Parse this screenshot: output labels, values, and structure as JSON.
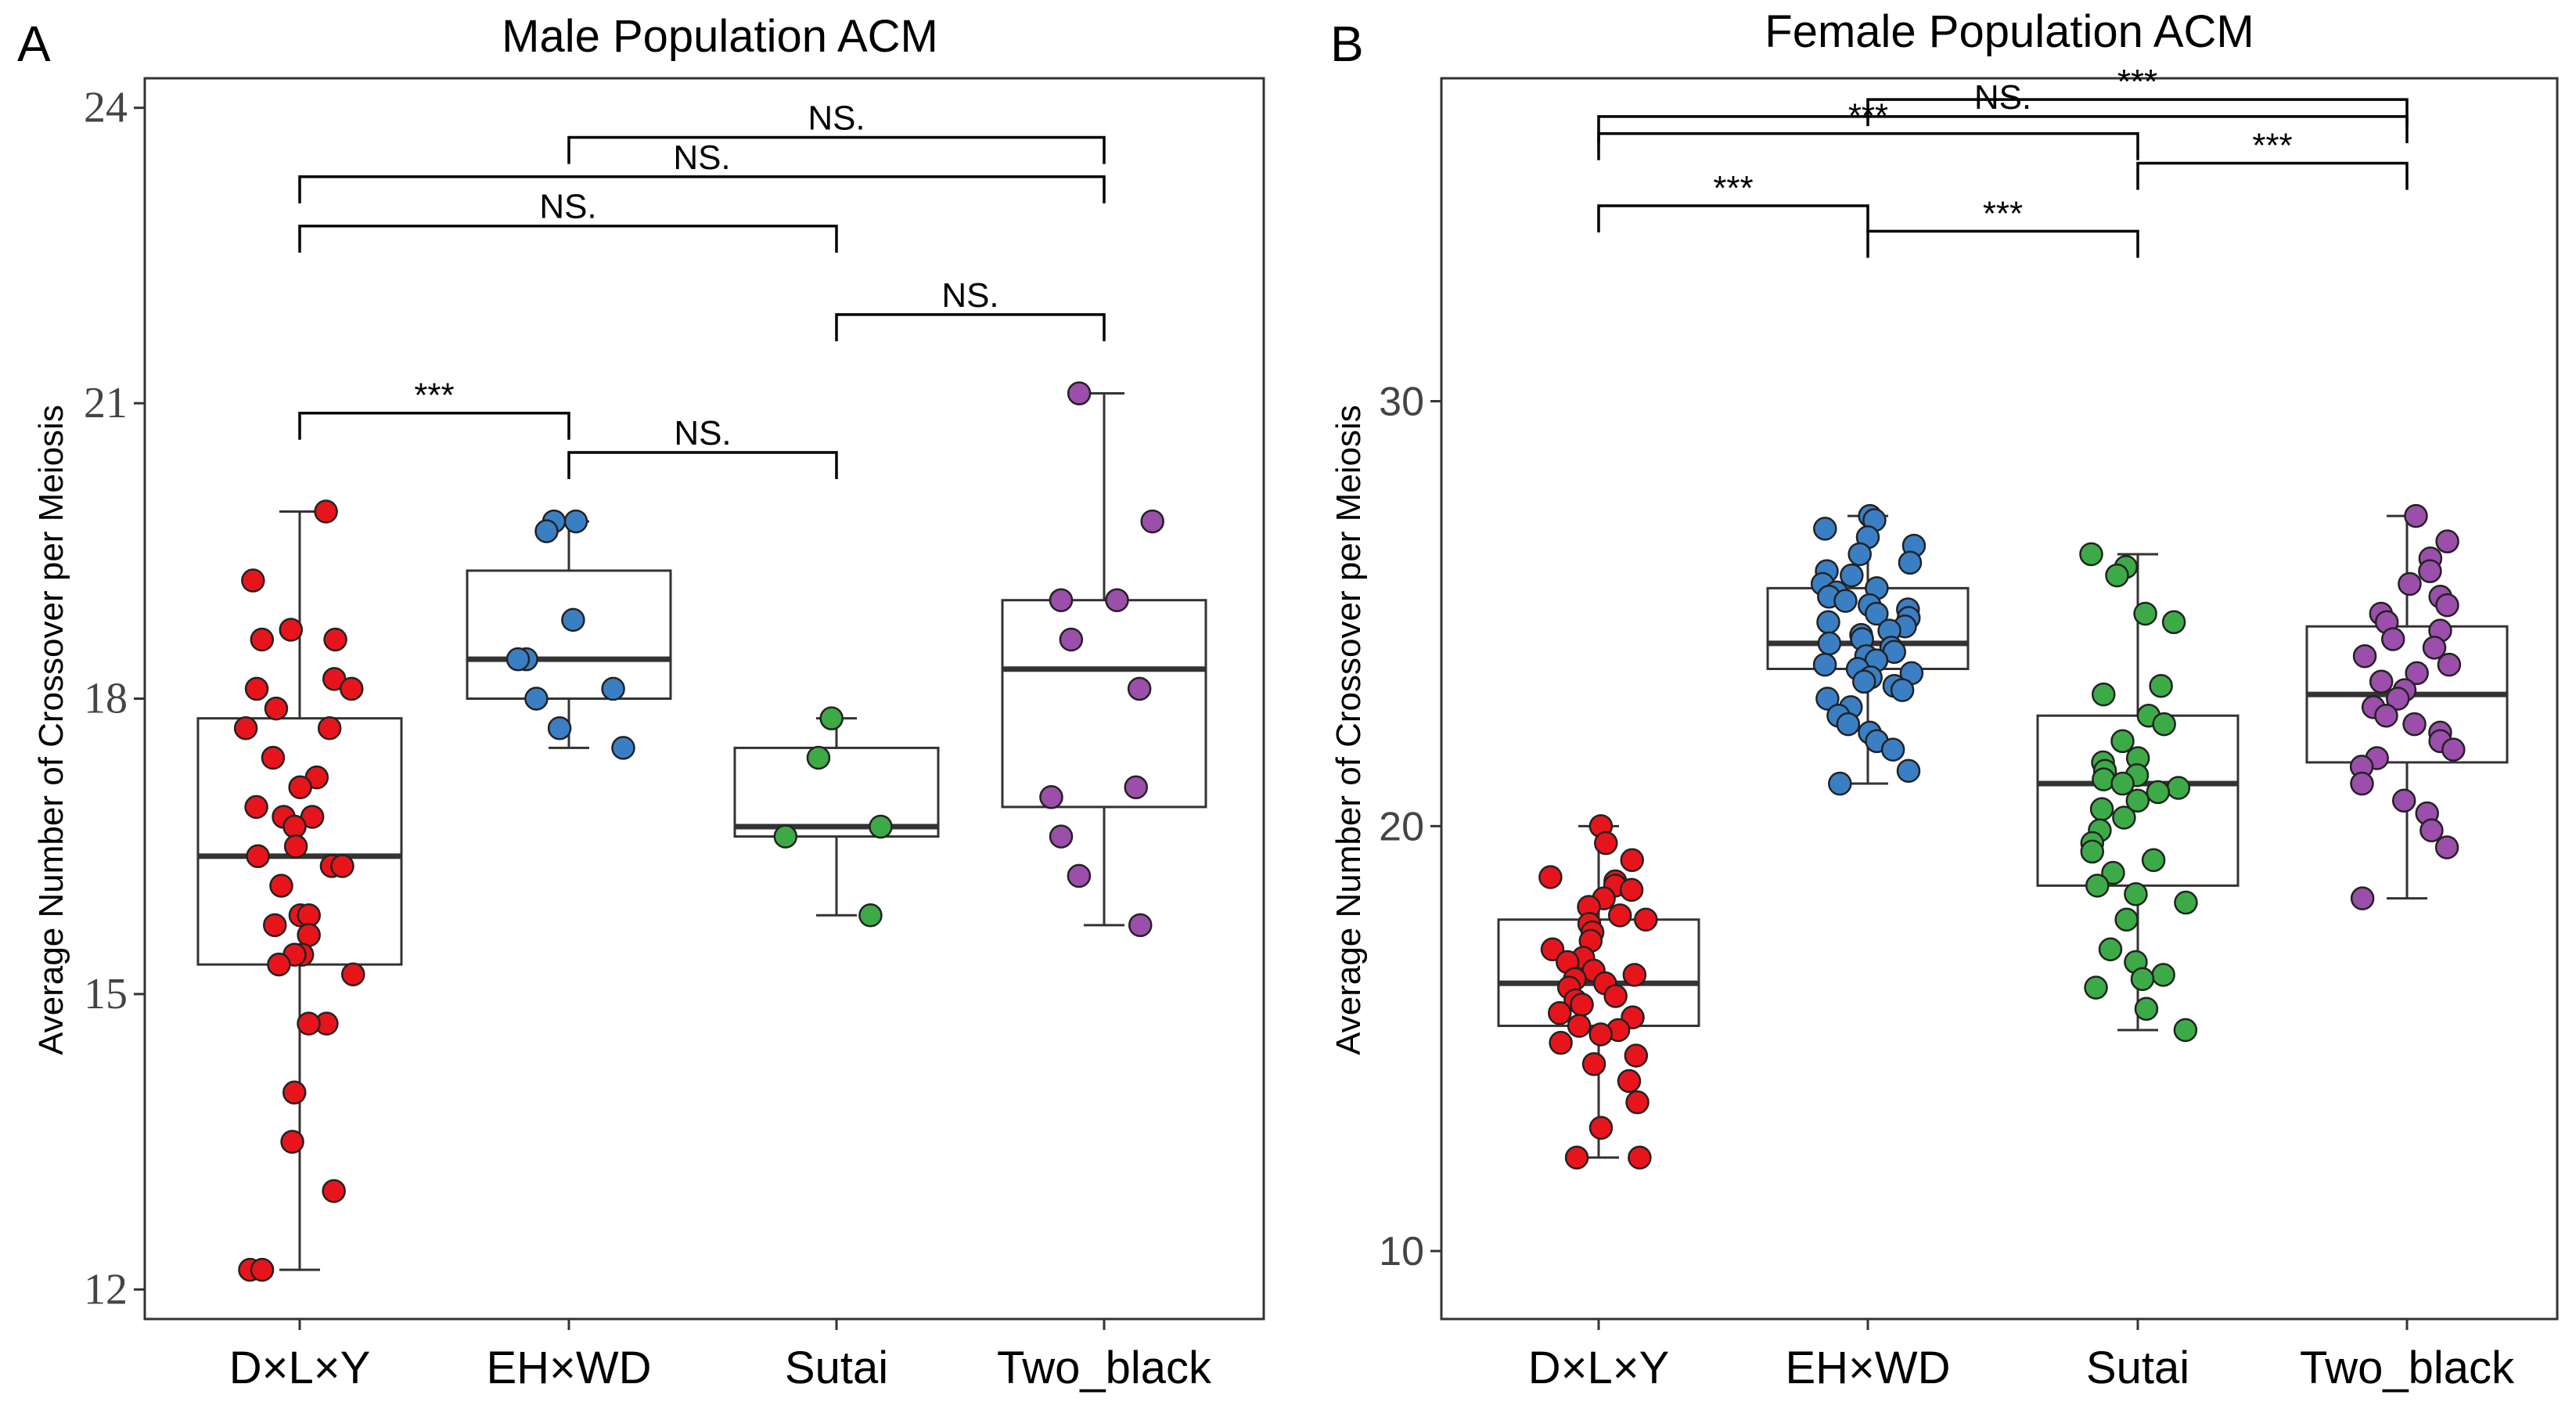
{
  "chart_data": [
    {
      "panel": "A",
      "type": "boxplot",
      "title": "Male Population ACM",
      "ylabel": "Average Number of Crossover per Meiosis",
      "xlabel": "",
      "ylim": [
        11.7,
        24.3
      ],
      "yticks": [
        12,
        15,
        18,
        21,
        24
      ],
      "ytick_labels": [
        "12",
        "15",
        "18",
        "21",
        "24"
      ],
      "categories": [
        "D×L×Y",
        "EH×WD",
        "Sutai",
        "Two_black"
      ],
      "colors": [
        "#e8141c",
        "#3a7fc4",
        "#3daa48",
        "#9b4eaa"
      ],
      "boxes": [
        {
          "q1": 15.3,
          "median": 16.4,
          "q3": 17.8,
          "whisker_low": 12.2,
          "whisker_high": 19.9
        },
        {
          "q1": 18.0,
          "median": 18.4,
          "q3": 19.3,
          "whisker_low": 17.5,
          "whisker_high": 19.8
        },
        {
          "q1": 16.6,
          "median": 16.7,
          "q3": 17.5,
          "whisker_low": 15.8,
          "whisker_high": 17.8
        },
        {
          "q1": 16.9,
          "median": 18.3,
          "q3": 19.0,
          "whisker_low": 15.7,
          "whisker_high": 21.1
        }
      ],
      "points": [
        [
          19.9,
          19.2,
          18.7,
          18.6,
          18.6,
          18.2,
          18.1,
          18.1,
          17.9,
          17.7,
          17.7,
          17.4,
          17.2,
          17.1,
          16.9,
          16.8,
          16.8,
          16.7,
          16.5,
          16.4,
          16.3,
          16.3,
          16.1,
          15.8,
          15.8,
          15.7,
          15.6,
          15.4,
          15.4,
          15.3,
          15.2,
          14.7,
          14.7,
          14.0,
          13.5,
          13.0,
          12.2,
          12.2
        ],
        [
          19.8,
          19.8,
          19.7,
          18.8,
          18.4,
          18.4,
          18.1,
          18.0,
          17.7,
          17.5
        ],
        [
          17.8,
          17.4,
          16.7,
          16.6,
          15.8
        ],
        [
          21.1,
          19.8,
          19.0,
          19.0,
          18.6,
          18.1,
          17.1,
          17.0,
          16.6,
          16.2,
          15.7
        ]
      ],
      "annotations": [
        {
          "from": "D×L×Y",
          "to": "EH×WD",
          "y": 20.9,
          "label": "***"
        },
        {
          "from": "EH×WD",
          "to": "Sutai",
          "y": 20.5,
          "label": "NS."
        },
        {
          "from": "Sutai",
          "to": "Two_black",
          "y": 21.9,
          "label": "NS."
        },
        {
          "from": "D×L×Y",
          "to": "Sutai",
          "y": 22.8,
          "label": "NS."
        },
        {
          "from": "D×L×Y",
          "to": "Two_black",
          "y": 23.3,
          "label": "NS."
        },
        {
          "from": "EH×WD",
          "to": "Two_black",
          "y": 23.7,
          "label": "NS."
        }
      ]
    },
    {
      "panel": "B",
      "type": "boxplot",
      "title": "Female Population ACM",
      "ylabel": "Average Number of Crossover per Meiosis",
      "xlabel": "",
      "ylim": [
        8.4,
        37.6
      ],
      "yticks": [
        10,
        20,
        30
      ],
      "ytick_labels": [
        "10",
        "20",
        "30"
      ],
      "categories": [
        "D×L×Y",
        "EH×WD",
        "Sutai",
        "Two_black"
      ],
      "colors": [
        "#e8141c",
        "#3a7fc4",
        "#3daa48",
        "#9b4eaa"
      ],
      "boxes": [
        {
          "q1": 15.3,
          "median": 16.3,
          "q3": 17.8,
          "whisker_low": 12.2,
          "whisker_high": 20.0
        },
        {
          "q1": 23.7,
          "median": 24.3,
          "q3": 25.6,
          "whisker_low": 21.0,
          "whisker_high": 27.3
        },
        {
          "q1": 18.6,
          "median": 21.0,
          "q3": 22.6,
          "whisker_low": 15.2,
          "whisker_high": 26.4
        },
        {
          "q1": 21.5,
          "median": 23.1,
          "q3": 24.7,
          "whisker_low": 18.3,
          "whisker_high": 27.3
        }
      ],
      "points": [
        [
          20.0,
          19.6,
          19.2,
          18.8,
          18.7,
          18.6,
          18.5,
          18.3,
          18.1,
          17.9,
          17.8,
          17.7,
          17.5,
          17.3,
          17.1,
          16.9,
          16.8,
          16.6,
          16.5,
          16.4,
          16.3,
          16.2,
          16.0,
          15.9,
          15.8,
          15.6,
          15.5,
          15.3,
          15.2,
          15.1,
          14.9,
          14.6,
          14.4,
          14.0,
          13.5,
          12.9,
          12.2,
          12.2
        ],
        [
          27.3,
          27.2,
          27.0,
          26.8,
          26.6,
          26.4,
          26.2,
          26.0,
          25.9,
          25.7,
          25.6,
          25.5,
          25.4,
          25.3,
          25.2,
          25.1,
          25.0,
          24.9,
          24.8,
          24.7,
          24.6,
          24.5,
          24.4,
          24.3,
          24.2,
          24.1,
          24.0,
          23.9,
          23.8,
          23.7,
          23.6,
          23.5,
          23.4,
          23.3,
          23.2,
          23.0,
          22.8,
          22.6,
          22.4,
          22.2,
          22.0,
          21.8,
          21.3,
          21.0
        ],
        [
          26.4,
          26.1,
          25.9,
          25.0,
          24.8,
          23.3,
          23.1,
          22.6,
          22.4,
          22.0,
          21.6,
          21.5,
          21.3,
          21.2,
          21.1,
          21.0,
          20.9,
          20.8,
          20.6,
          20.4,
          20.2,
          19.9,
          19.6,
          19.4,
          19.2,
          18.9,
          18.6,
          18.4,
          18.2,
          17.8,
          17.1,
          16.8,
          16.5,
          16.4,
          16.2,
          15.7,
          15.2
        ],
        [
          27.3,
          26.7,
          26.3,
          26.0,
          25.7,
          25.4,
          25.2,
          25.0,
          24.8,
          24.6,
          24.4,
          24.2,
          24.0,
          23.8,
          23.6,
          23.4,
          23.2,
          23.0,
          22.8,
          22.6,
          22.4,
          22.2,
          22.0,
          21.8,
          21.6,
          21.4,
          21.0,
          20.6,
          20.3,
          19.9,
          19.5,
          18.3
        ]
      ],
      "annotations": [
        {
          "from": "D×L×Y",
          "to": "EH×WD",
          "y": 34.6,
          "label": "***"
        },
        {
          "from": "EH×WD",
          "to": "Sutai",
          "y": 34.0,
          "label": "***"
        },
        {
          "from": "Sutai",
          "to": "Two_black",
          "y": 35.6,
          "label": "***"
        },
        {
          "from": "D×L×Y",
          "to": "Sutai",
          "y": 36.3,
          "label": "***"
        },
        {
          "from": "D×L×Y",
          "to": "Two_black",
          "y": 36.7,
          "label": "NS."
        },
        {
          "from": "EH×WD",
          "to": "Two_black",
          "y": 37.1,
          "label": "***"
        }
      ]
    }
  ]
}
